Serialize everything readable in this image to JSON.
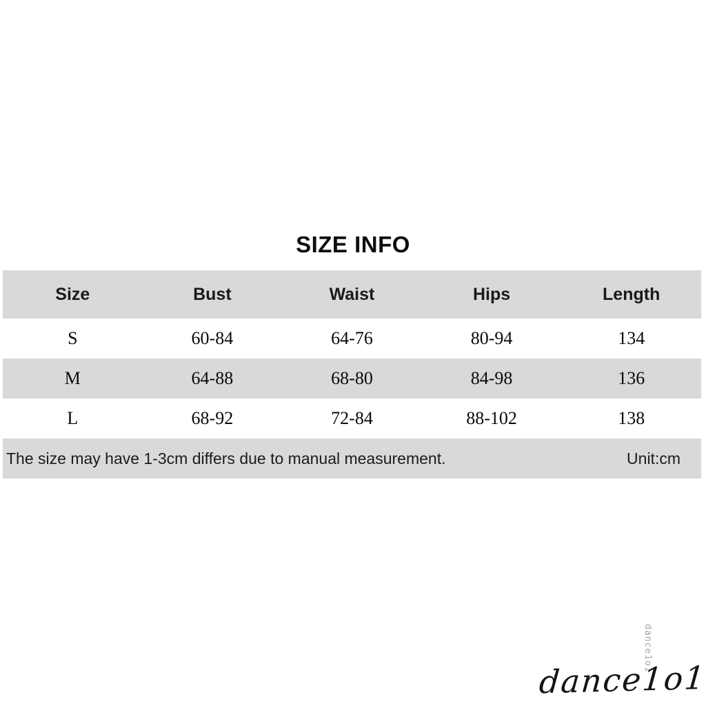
{
  "chart_data": {
    "type": "table",
    "title": "SIZE INFO",
    "columns": [
      "Size",
      "Bust",
      "Waist",
      "Hips",
      "Length"
    ],
    "rows": [
      [
        "S",
        "60-84",
        "64-76",
        "80-94",
        "134"
      ],
      [
        "M",
        "64-88",
        "68-80",
        "84-98",
        "136"
      ],
      [
        "L",
        "68-92",
        "72-84",
        "88-102",
        "138"
      ]
    ],
    "note": "The size may have 1-3cm differs due to manual measurement.",
    "unit": "cm",
    "layout": {
      "shaded_rows": [
        "header",
        "M",
        "footer"
      ],
      "band_color": "#d9d9d9",
      "row_background": "#ffffff"
    }
  },
  "footer": {
    "unit_label": "Unit:cm"
  },
  "watermark": {
    "vertical_tag": "dance1o1",
    "signature": "dance1o1"
  },
  "colors": {
    "band": "#d9d9d9",
    "text": "#111111",
    "watermark_gray": "#a6a6a6"
  }
}
